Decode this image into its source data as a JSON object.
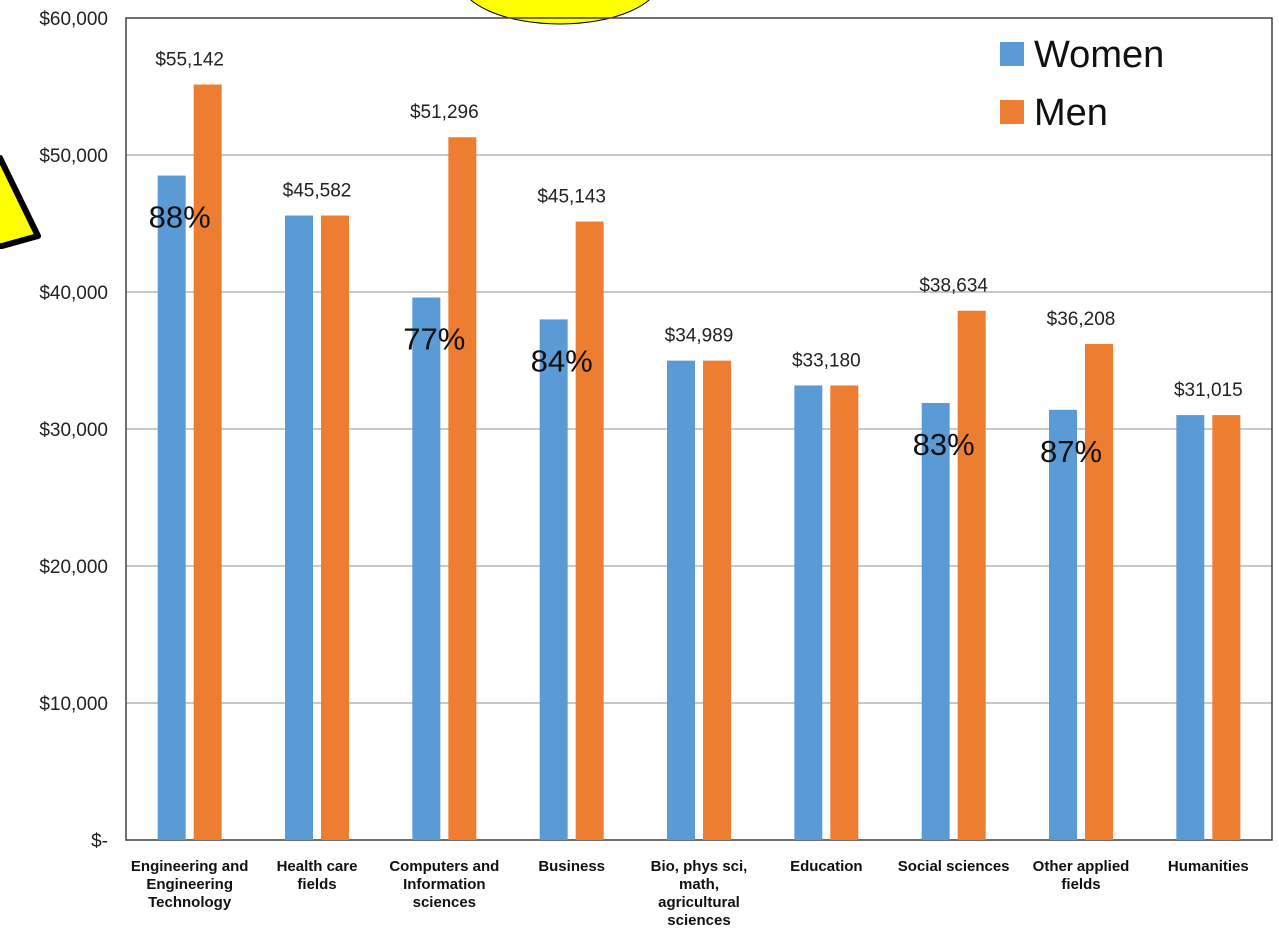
{
  "chart_data": {
    "type": "bar",
    "title": "",
    "xlabel": "",
    "ylabel": "",
    "ylim": [
      0,
      60000
    ],
    "y_ticks": [
      {
        "value": 0,
        "label": "$-"
      },
      {
        "value": 10000,
        "label": "$10,000"
      },
      {
        "value": 20000,
        "label": "$20,000"
      },
      {
        "value": 30000,
        "label": "$30,000"
      },
      {
        "value": 40000,
        "label": "$40,000"
      },
      {
        "value": 50000,
        "label": "$50,000"
      },
      {
        "value": 60000,
        "label": "$60,000"
      }
    ],
    "grid": true,
    "legend_position": "top-right",
    "categories": [
      [
        "Engineering and",
        "Engineering",
        "Technology"
      ],
      [
        "Health care",
        "fields"
      ],
      [
        "Computers and",
        "Information",
        "sciences"
      ],
      [
        "Business"
      ],
      [
        "Bio, phys sci,",
        "math,",
        "agricultural",
        "sciences"
      ],
      [
        "Education"
      ],
      [
        "Social sciences"
      ],
      [
        "Other applied",
        "fields"
      ],
      [
        "Humanities"
      ]
    ],
    "series": [
      {
        "name": "Women",
        "color": "#5b9bd5",
        "values": [
          48500,
          45582,
          39600,
          38000,
          34989,
          33180,
          31900,
          31400,
          31015
        ]
      },
      {
        "name": "Men",
        "color": "#ed7d31",
        "values": [
          55142,
          45582,
          51296,
          45143,
          34989,
          33180,
          38634,
          36208,
          31015
        ]
      }
    ],
    "data_labels": [
      "$55,142",
      "$45,582",
      "$51,296",
      "$45,143",
      "$34,989",
      "$33,180",
      "$38,634",
      "$36,208",
      "$31,015"
    ],
    "ratio_labels": [
      "88%",
      "",
      "77%",
      "84%",
      "",
      "",
      "83%",
      "87%",
      ""
    ],
    "decorations": {
      "circle_color": "#ffff00",
      "warning_color": "#ffff00"
    }
  }
}
